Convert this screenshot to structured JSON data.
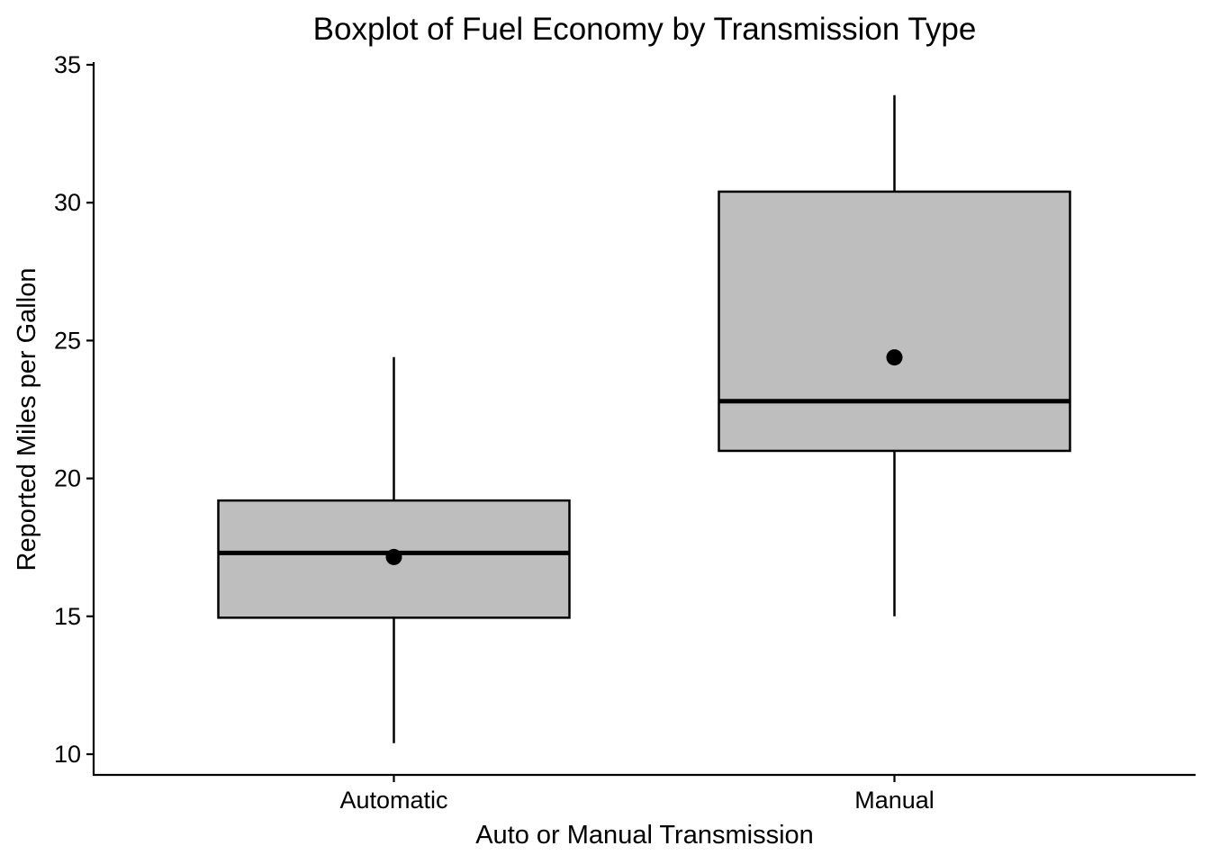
{
  "chart_data": {
    "type": "boxplot",
    "title": "Boxplot of Fuel Economy by Transmission Type",
    "xlabel": "Auto or Manual Transmission",
    "ylabel": "Reported Miles per Gallon",
    "ylim": [
      9.25,
      35
    ],
    "yticks": [
      10,
      15,
      20,
      25,
      30,
      35
    ],
    "grid": false,
    "legend": "none",
    "box_fill": "#bebebe",
    "categories": [
      "Automatic",
      "Manual"
    ],
    "boxes": [
      {
        "category": "Automatic",
        "min": 10.4,
        "q1": 14.95,
        "median": 17.3,
        "q3": 19.2,
        "max": 24.4,
        "mean": 17.15
      },
      {
        "category": "Manual",
        "min": 15.0,
        "q1": 21.0,
        "median": 22.8,
        "q3": 30.4,
        "max": 33.9,
        "mean": 24.39
      }
    ]
  }
}
